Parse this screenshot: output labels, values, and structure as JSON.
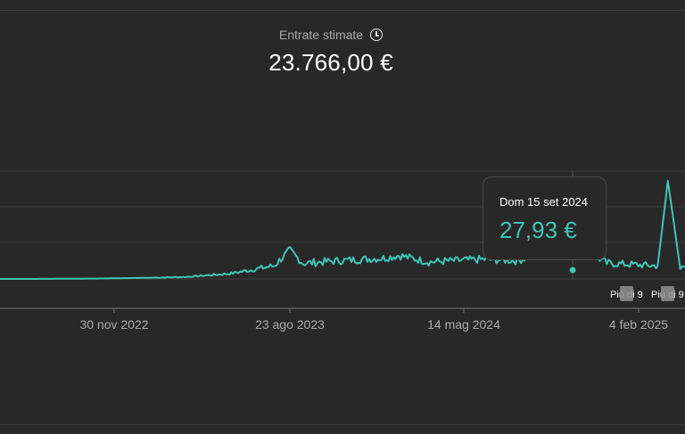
{
  "metric": {
    "label": "Entrate stimate",
    "value": "23.766,00 €",
    "icon": "clock-icon"
  },
  "tooltip": {
    "date": "Dom 15 set 2024",
    "value": "27,93 €"
  },
  "annotations": [
    {
      "label": "Più di 9"
    },
    {
      "label": "Più di 9"
    }
  ],
  "colors": {
    "background": "#282828",
    "line": "#3ec5b6",
    "grid": "#3d3d3d",
    "axis": "#6f6f6f",
    "tick_text": "#aaaaaa",
    "badge": "#8f8f8f"
  },
  "chart_data": {
    "type": "line",
    "title": "",
    "xlabel": "",
    "ylabel": "",
    "x_ticks": [
      "30 nov 2022",
      "23 ago 2023",
      "14 mag 2024",
      "4 feb 2025"
    ],
    "y_gridlines": 4,
    "grid": true,
    "series": [
      {
        "values": [
          [
            "2022-06-01",
            0
          ],
          [
            "2022-09-01",
            0
          ],
          [
            "2022-12-01",
            0.3
          ],
          [
            "2023-02-01",
            0.8
          ],
          [
            "2023-04-01",
            1.5
          ],
          [
            "2023-06-01",
            4
          ],
          [
            "2023-08-01",
            10
          ],
          [
            "2023-08-23",
            22
          ],
          [
            "2023-09-10",
            12
          ],
          [
            "2023-11-01",
            14
          ],
          [
            "2024-01-01",
            16
          ],
          [
            "2024-01-20",
            18
          ],
          [
            "2024-03-01",
            13
          ],
          [
            "2024-05-14",
            15
          ],
          [
            "2024-07-01",
            14
          ],
          [
            "2024-09-15",
            27.93
          ],
          [
            "2024-11-01",
            12
          ],
          [
            "2025-01-10",
            10
          ],
          [
            "2025-01-24",
            75
          ],
          [
            "2025-02-10",
            8
          ],
          [
            "2025-03-20",
            12
          ],
          [
            "2025-04-20",
            10
          ]
        ]
      }
    ]
  }
}
